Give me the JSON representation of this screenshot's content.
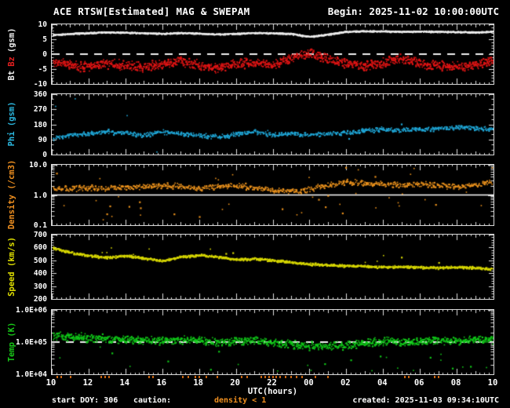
{
  "chart_data": {
    "type": "scatter",
    "title": "ACE RTSW[Estimated] MAG & SWEPAM",
    "begin": "Begin: 2025-11-02 10:00:00UTC",
    "created": "created: 2025-11-03 09:34:10UTC",
    "start_doy": "start DOY: 306",
    "caution": {
      "label": "caution:",
      "value": "density < 1",
      "color": "#f09020"
    },
    "x_axis": {
      "label": "UTC(hours)",
      "range_hours": [
        0,
        24
      ],
      "tick_step_hours": 2,
      "tick_labels": [
        "10",
        "12",
        "14",
        "16",
        "18",
        "20",
        "22",
        "00",
        "02",
        "04",
        "06",
        "08",
        "10"
      ]
    },
    "keyframe_step_hours": 1,
    "caution_marks_hours": [
      0.3,
      0.5,
      1.0,
      2.7,
      2.9,
      3.1,
      5.3,
      5.5,
      7.1,
      7.4,
      7.8,
      8.0,
      8.4,
      9.0,
      10.3,
      10.6,
      11.4,
      11.6,
      11.8,
      12.0,
      12.2,
      12.4,
      12.7,
      13.0,
      13.3,
      13.6,
      14.3,
      15.0,
      19.2,
      19.4,
      20.8,
      21.0
    ],
    "panels": [
      {
        "name": "bt-bz",
        "ylabel_parts": [
          {
            "text": "Bt",
            "color": "#f0f0f0"
          },
          {
            "text": "Bz",
            "color": "#e82020"
          },
          {
            "text": "(gsm)",
            "color": "#f0f0f0"
          }
        ],
        "ylim": [
          -10,
          10
        ],
        "log": false,
        "major": 5,
        "minor": 1,
        "yticks": [
          {
            "v": 10,
            "label": "10"
          },
          {
            "v": 5,
            "label": "5"
          },
          {
            "v": 0,
            "label": "0"
          },
          {
            "v": -5,
            "label": "-5"
          },
          {
            "v": -10,
            "label": "-10"
          }
        ],
        "ref_lines": [
          {
            "v": 0,
            "style": "dashed",
            "color": "#f0f0f0"
          }
        ],
        "series": [
          {
            "name": "Bt",
            "color": "#ededed",
            "noise": 0.25,
            "pph": 80,
            "dot": 1.6,
            "values": [
              6.6,
              7.0,
              7.3,
              7.5,
              7.4,
              7.2,
              7.0,
              7.3,
              7.1,
              6.8,
              7.0,
              7.3,
              7.2,
              7.0,
              6.0,
              6.8,
              7.7,
              7.9,
              7.8,
              7.7,
              7.8,
              7.7,
              7.6,
              7.5,
              7.8
            ]
          },
          {
            "name": "Bz",
            "color": "#e01414",
            "noise": 1.9,
            "pph": 55,
            "dot": 1.8,
            "values": [
              -2.5,
              -3.5,
              -4.0,
              -3.0,
              -3.6,
              -4.2,
              -3.0,
              -2.2,
              -3.5,
              -4.4,
              -3.0,
              -2.6,
              -3.4,
              -1.2,
              0.8,
              -1.5,
              -3.0,
              -3.6,
              -2.6,
              -1.2,
              -3.0,
              -3.6,
              -4.0,
              -3.2,
              -2.2
            ]
          }
        ]
      },
      {
        "name": "phi",
        "ylabel": "Phi (gsm)",
        "label_color": "#2bb8e0",
        "ylim": [
          0,
          360
        ],
        "log": false,
        "major": 90,
        "minor": 30,
        "yticks": [
          {
            "v": 360,
            "label": "360"
          },
          {
            "v": 270,
            "label": "270"
          },
          {
            "v": 180,
            "label": "180"
          },
          {
            "v": 90,
            "label": "90"
          },
          {
            "v": 0,
            "label": "0"
          }
        ],
        "ref_lines": [],
        "series": [
          {
            "name": "Phi",
            "color": "#1fa6d6",
            "noise": 16,
            "pph": 34,
            "dot": 1.8,
            "outliers": [
              {
                "prob": 0.012,
                "mode": "uniform"
              }
            ],
            "values": [
              100,
              115,
              130,
              140,
              132,
              120,
              138,
              128,
              118,
              108,
              125,
              138,
              120,
              130,
              118,
              128,
              135,
              148,
              155,
              148,
              152,
              158,
              165,
              158,
              162
            ]
          }
        ]
      },
      {
        "name": "density",
        "ylabel": "Density (/cm3)",
        "label_color": "#f09020",
        "ylim": [
          0.1,
          10
        ],
        "log": true,
        "yticks": [
          {
            "v": 10,
            "label": "10.0"
          },
          {
            "v": 1,
            "label": "1.0"
          },
          {
            "v": 0.1,
            "label": "0.1"
          }
        ],
        "ref_lines": [
          {
            "v": 1,
            "style": "solid",
            "color": "#ffffff"
          }
        ],
        "series": [
          {
            "name": "Density",
            "color": "#e8901c",
            "noise": 0.11,
            "pph": 34,
            "dot": 1.8,
            "outliers": [
              {
                "prob": 0.05,
                "mode": "down",
                "mag": 0.85
              },
              {
                "prob": 0.018,
                "mode": "up",
                "mag": 0.5
              }
            ],
            "values": [
              1.6,
              1.7,
              1.8,
              1.7,
              1.9,
              2.0,
              2.2,
              2.0,
              1.8,
              2.0,
              2.2,
              1.8,
              1.5,
              1.4,
              1.6,
              2.2,
              2.8,
              2.6,
              2.4,
              2.2,
              2.4,
              2.2,
              2.0,
              2.2,
              3.0
            ]
          }
        ]
      },
      {
        "name": "speed",
        "ylabel": "Speed (km/s)",
        "label_color": "#e0e000",
        "ylim": [
          200,
          700
        ],
        "log": false,
        "major": 100,
        "minor": 20,
        "yticks": [
          {
            "v": 700,
            "label": "700"
          },
          {
            "v": 600,
            "label": "600"
          },
          {
            "v": 500,
            "label": "500"
          },
          {
            "v": 400,
            "label": "400"
          },
          {
            "v": 300,
            "label": "300"
          },
          {
            "v": 200,
            "label": "200"
          }
        ],
        "ref_lines": [],
        "series": [
          {
            "name": "Speed",
            "color": "#d6d600",
            "noise": 11,
            "pph": 50,
            "dot": 1.8,
            "outliers": [
              {
                "prob": 0.015,
                "mode": "up",
                "mag": 70
              }
            ],
            "values": [
              600,
              565,
              540,
              525,
              540,
              520,
              500,
              530,
              545,
              530,
              510,
              515,
              505,
              490,
              475,
              468,
              462,
              457,
              452,
              456,
              450,
              446,
              452,
              446,
              438
            ]
          }
        ]
      },
      {
        "name": "temp",
        "ylabel": "Temp (K)",
        "label_color": "#18c818",
        "ylim": [
          10000,
          1000000
        ],
        "log": true,
        "yticks": [
          {
            "v": 1000000,
            "label": "1.0E+06"
          },
          {
            "v": 100000,
            "label": "1.0E+05"
          },
          {
            "v": 10000,
            "label": "1.0E+04"
          }
        ],
        "ref_lines": [
          {
            "v": 100000,
            "style": "dashed",
            "color": "#f0f0f0"
          }
        ],
        "series": [
          {
            "name": "Temp",
            "color": "#10c818",
            "noise": 0.15,
            "pph": 50,
            "dot": 1.8,
            "outliers": [
              {
                "prob": 0.02,
                "mode": "down",
                "mag": 0.8
              }
            ],
            "values": [
              155000,
              160000,
              140000,
              132000,
              126000,
              120000,
              112000,
              126000,
              112000,
              100000,
              112000,
              120000,
              100000,
              89000,
              79000,
              76000,
              83000,
              100000,
              112000,
              105000,
              112000,
              120000,
              112000,
              126000,
              120000
            ]
          }
        ]
      }
    ]
  }
}
